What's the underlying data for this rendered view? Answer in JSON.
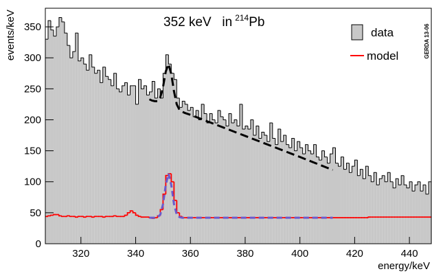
{
  "chart_data": {
    "type": "histogram",
    "title_parts": [
      "352 keV",
      "in",
      "214",
      "Pb"
    ],
    "side_label": "GERDA 13-06",
    "x_label": "energy/keV",
    "y_label": "events/keV",
    "bins": [
      307,
      308,
      309,
      310,
      311,
      312,
      313,
      314,
      315,
      316,
      317,
      318,
      319,
      320,
      321,
      322,
      323,
      324,
      325,
      326,
      327,
      328,
      329,
      330,
      331,
      332,
      333,
      334,
      335,
      336,
      337,
      338,
      339,
      340,
      341,
      342,
      343,
      344,
      345,
      346,
      347,
      348,
      349,
      350,
      351,
      352,
      353,
      354,
      355,
      356,
      357,
      358,
      359,
      360,
      361,
      362,
      363,
      364,
      365,
      366,
      367,
      368,
      369,
      370,
      371,
      372,
      373,
      374,
      375,
      376,
      377,
      378,
      379,
      380,
      381,
      382,
      383,
      384,
      385,
      386,
      387,
      388,
      389,
      390,
      391,
      392,
      393,
      394,
      395,
      396,
      397,
      398,
      399,
      400,
      401,
      402,
      403,
      404,
      405,
      406,
      407,
      408,
      409,
      410,
      411,
      412,
      413,
      414,
      415,
      416,
      417,
      418,
      419,
      420,
      421,
      422,
      423,
      424,
      425,
      426,
      427,
      428,
      429,
      430,
      431,
      432,
      433,
      434,
      435,
      436,
      437,
      438,
      439,
      440,
      441,
      442,
      443,
      444,
      445,
      446,
      447,
      448
    ],
    "series": [
      {
        "name": "data",
        "color": "#c8c8c8",
        "values": [
          330,
          360,
          345,
          335,
          350,
          365,
          358,
          340,
          320,
          300,
          310,
          340,
          295,
          300,
          290,
          280,
          305,
          285,
          275,
          280,
          260,
          285,
          270,
          265,
          255,
          275,
          250,
          245,
          255,
          260,
          240,
          255,
          255,
          225,
          265,
          250,
          255,
          240,
          245,
          262,
          235,
          250,
          235,
          275,
          305,
          290,
          275,
          265,
          235,
          220,
          230,
          225,
          215,
          220,
          205,
          215,
          200,
          225,
          210,
          195,
          210,
          200,
          195,
          215,
          205,
          200,
          190,
          210,
          195,
          200,
          190,
          225,
          185,
          190,
          185,
          200,
          175,
          190,
          170,
          180,
          175,
          165,
          195,
          170,
          160,
          185,
          165,
          175,
          160,
          155,
          170,
          150,
          165,
          155,
          145,
          160,
          150,
          145,
          160,
          140,
          135,
          150,
          140,
          130,
          145,
          155,
          130,
          125,
          140,
          120,
          130,
          115,
          125,
          135,
          110,
          120,
          105,
          125,
          110,
          100,
          115,
          95,
          105,
          110,
          100,
          115,
          100,
          90,
          105,
          95,
          110,
          95,
          90,
          100,
          85,
          95,
          100,
          85,
          95,
          80,
          100
        ]
      },
      {
        "name": "model",
        "color": "#ff0000",
        "values": [
          44,
          45,
          46,
          47,
          47,
          45,
          44,
          44,
          45,
          44,
          44,
          43,
          44,
          44,
          43,
          44,
          44,
          43,
          44,
          44,
          44,
          43,
          44,
          44,
          44,
          45,
          44,
          44,
          44,
          46,
          50,
          53,
          50,
          46,
          44,
          43,
          43,
          43,
          42,
          41,
          42,
          45,
          55,
          80,
          110,
          113,
          100,
          70,
          50,
          44,
          42,
          42,
          42,
          42,
          42,
          42,
          42,
          42,
          42,
          42,
          42,
          42,
          42,
          42,
          42,
          42,
          42,
          42,
          42,
          42,
          42,
          42,
          42,
          42,
          42,
          42,
          42,
          42,
          42,
          42,
          42,
          42,
          42,
          42,
          42,
          42,
          42,
          42,
          42,
          42,
          42,
          42,
          42,
          42,
          42,
          42,
          42,
          42,
          42,
          42,
          42,
          42,
          42,
          42,
          42,
          42,
          42,
          42,
          42,
          42,
          42,
          42,
          42,
          42,
          42,
          42,
          42,
          42,
          43,
          43,
          43,
          43,
          43,
          43,
          43,
          43,
          43,
          43,
          43,
          43,
          43,
          43,
          43,
          43,
          43,
          43,
          43,
          43,
          43,
          43,
          43
        ]
      }
    ],
    "fits": [
      {
        "color": "#000000",
        "x": [
          345,
          346,
          347,
          348,
          349,
          350,
          351,
          352,
          353,
          354,
          355,
          356,
          357,
          358,
          360,
          370,
          380,
          390,
          400,
          412
        ],
        "values": [
          233,
          231,
          230,
          230,
          236,
          253,
          278,
          290,
          274,
          246,
          225,
          216,
          213,
          211,
          208,
          191,
          174,
          157,
          140,
          119
        ]
      },
      {
        "color": "#6a5acd",
        "x": [
          345,
          346,
          347,
          348,
          349,
          350,
          351,
          352,
          353,
          354,
          355,
          356,
          357,
          358,
          360,
          370,
          380,
          390,
          400,
          412
        ],
        "values": [
          42,
          42,
          42,
          43,
          47,
          64,
          95,
          113,
          95,
          64,
          47,
          43,
          42,
          42,
          42,
          42,
          42,
          42,
          42,
          42
        ]
      }
    ],
    "xlim": [
      307,
      448
    ],
    "ylim": [
      0,
      380
    ],
    "xticks": [
      320,
      340,
      360,
      380,
      400,
      420,
      440
    ],
    "yticks": [
      0,
      50,
      100,
      150,
      200,
      250,
      300,
      350
    ]
  }
}
